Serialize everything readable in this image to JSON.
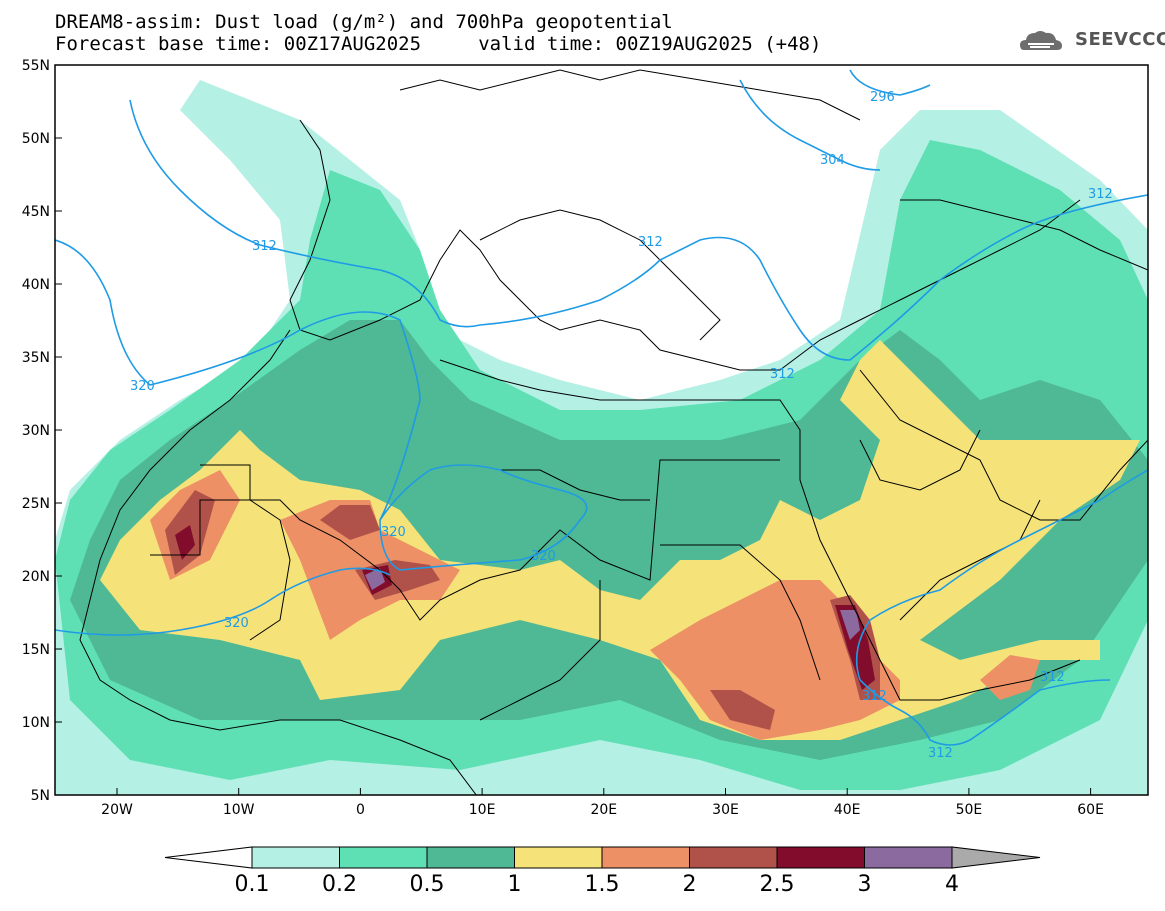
{
  "title_line1": "DREAM8-assim: Dust load (g/m²) and 700hPa geopotential",
  "title_line2": "Forecast base time: 00Z17AUG2025     valid time: 00Z19AUG2025 (+48)",
  "logo_text": "SEEVCCC",
  "lat_ticks": [
    "55N",
    "50N",
    "45N",
    "40N",
    "35N",
    "30N",
    "25N",
    "20N",
    "15N",
    "10N",
    "5N"
  ],
  "lon_ticks": [
    "20W",
    "10W",
    "0",
    "10E",
    "20E",
    "30E",
    "40E",
    "50E",
    "60E"
  ],
  "contour_labels": [
    "296",
    "304",
    "312",
    "312",
    "312",
    "312",
    "320",
    "320",
    "320",
    "320",
    "312",
    "312",
    "312",
    "312"
  ],
  "colorbar": {
    "levels": [
      "0.1",
      "0.2",
      "0.5",
      "1",
      "1.5",
      "2",
      "2.5",
      "3",
      "4"
    ],
    "colors": [
      "#b4f0e4",
      "#5fe0b4",
      "#4fb894",
      "#f5e37a",
      "#ed9066",
      "#b0524a",
      "#820c2c",
      "#8b6aa0"
    ],
    "under_color": "#ffffff",
    "over_color": "#aaaaaa"
  },
  "colors": {
    "contour": "#1f9be6",
    "border": "#000000"
  }
}
